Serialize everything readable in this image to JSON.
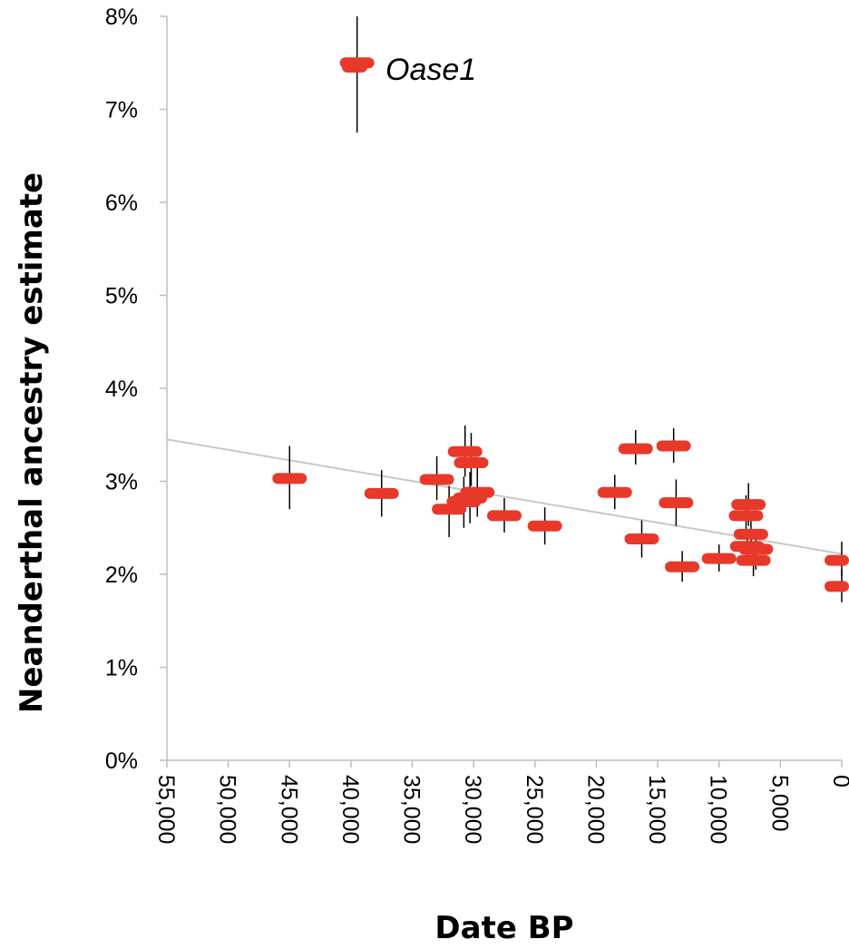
{
  "chart_data": {
    "type": "scatter",
    "xlabel": "Date BP",
    "ylabel": "Neanderthal ancestry estimate",
    "xlim": [
      55000,
      0
    ],
    "ylim": [
      0,
      8
    ],
    "x_reversed": true,
    "y_ticks": [
      "0%",
      "1%",
      "2%",
      "3%",
      "4%",
      "5%",
      "6%",
      "7%",
      "8%"
    ],
    "x_ticks": [
      "55,000",
      "50,000",
      "45,000",
      "40,000",
      "35,000",
      "30,000",
      "25,000",
      "20,000",
      "15,000",
      "10,000",
      "5,000",
      "0"
    ],
    "grid": false,
    "marker_color": "#e8382a",
    "errorbar_color": "#000000",
    "trendline_color": "#c8c8c8",
    "trendline": {
      "x": [
        55000,
        0
      ],
      "y": [
        3.45,
        2.22
      ]
    },
    "annotation": {
      "text": "Oase1",
      "point": {
        "x": 39500,
        "y": 7.5
      }
    },
    "points": [
      {
        "x": 39500,
        "y": 7.5,
        "err_low": 6.75,
        "err_high": 8.0
      },
      {
        "x": 45000,
        "y": 3.03,
        "err_low": 2.7,
        "err_high": 3.38
      },
      {
        "x": 37500,
        "y": 2.87,
        "err_low": 2.62,
        "err_high": 3.12
      },
      {
        "x": 33000,
        "y": 3.02,
        "err_low": 2.8,
        "err_high": 3.27
      },
      {
        "x": 32000,
        "y": 2.7,
        "err_low": 2.4,
        "err_high": 2.95
      },
      {
        "x": 30700,
        "y": 3.32,
        "err_low": 3.05,
        "err_high": 3.6
      },
      {
        "x": 30200,
        "y": 3.2,
        "err_low": 2.95,
        "err_high": 3.52
      },
      {
        "x": 30800,
        "y": 2.78,
        "err_low": 2.5,
        "err_high": 3.05
      },
      {
        "x": 29700,
        "y": 2.88,
        "err_low": 2.62,
        "err_high": 3.15
      },
      {
        "x": 30300,
        "y": 2.82,
        "err_low": 2.55,
        "err_high": 3.1
      },
      {
        "x": 27500,
        "y": 2.63,
        "err_low": 2.45,
        "err_high": 2.82
      },
      {
        "x": 24200,
        "y": 2.52,
        "err_low": 2.32,
        "err_high": 2.72
      },
      {
        "x": 18500,
        "y": 2.88,
        "err_low": 2.7,
        "err_high": 3.07
      },
      {
        "x": 16800,
        "y": 3.35,
        "err_low": 3.18,
        "err_high": 3.55
      },
      {
        "x": 16300,
        "y": 2.38,
        "err_low": 2.18,
        "err_high": 2.58
      },
      {
        "x": 13700,
        "y": 3.38,
        "err_low": 3.2,
        "err_high": 3.57
      },
      {
        "x": 13500,
        "y": 2.77,
        "err_low": 2.52,
        "err_high": 3.02
      },
      {
        "x": 13000,
        "y": 2.08,
        "err_low": 1.92,
        "err_high": 2.25
      },
      {
        "x": 10000,
        "y": 2.17,
        "err_low": 2.03,
        "err_high": 2.32
      },
      {
        "x": 7600,
        "y": 2.75,
        "err_low": 2.52,
        "err_high": 2.98
      },
      {
        "x": 7800,
        "y": 2.63,
        "err_low": 2.42,
        "err_high": 2.85
      },
      {
        "x": 7400,
        "y": 2.43,
        "err_low": 2.25,
        "err_high": 2.62
      },
      {
        "x": 7700,
        "y": 2.3,
        "err_low": 2.12,
        "err_high": 2.48
      },
      {
        "x": 7000,
        "y": 2.27,
        "err_low": 2.05,
        "err_high": 2.47
      },
      {
        "x": 7200,
        "y": 2.15,
        "err_low": 1.98,
        "err_high": 2.35
      },
      {
        "x": 0,
        "y": 2.15,
        "err_low": 1.98,
        "err_high": 2.35
      },
      {
        "x": 0,
        "y": 1.87,
        "err_low": 1.7,
        "err_high": 2.05
      }
    ]
  }
}
